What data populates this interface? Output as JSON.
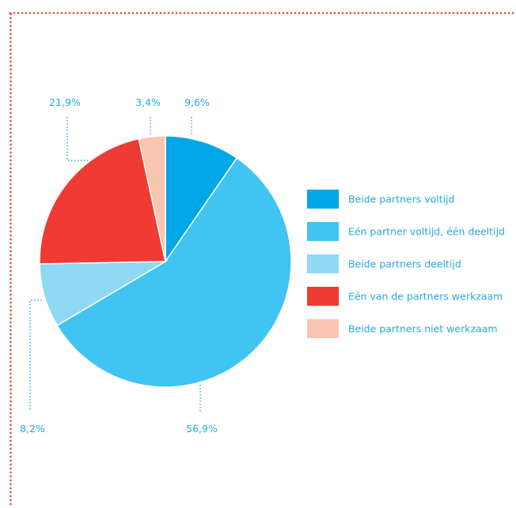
{
  "chart_data": {
    "type": "pie",
    "title": "",
    "categories": [
      "Beide partners voltijd",
      "Eén partner voltijd, één deeltijd",
      "Beide partners deeltijd",
      "Eén van de partners werkzaam",
      "Beide partners niet werkzaam"
    ],
    "values": [
      9.6,
      56.9,
      8.2,
      21.9,
      3.4
    ],
    "labels": [
      "9,6%",
      "56,9%",
      "8,2%",
      "21,9%",
      "3,4%"
    ],
    "colors": [
      "#00a6e6",
      "#40c4f2",
      "#8fd8f6",
      "#ef3b33",
      "#f9c4b0"
    ],
    "legend_position": "right"
  },
  "theme": {
    "border_color": "#e63b3b",
    "leader_color": "#27a9e1",
    "label_color": "#27a9e1"
  }
}
